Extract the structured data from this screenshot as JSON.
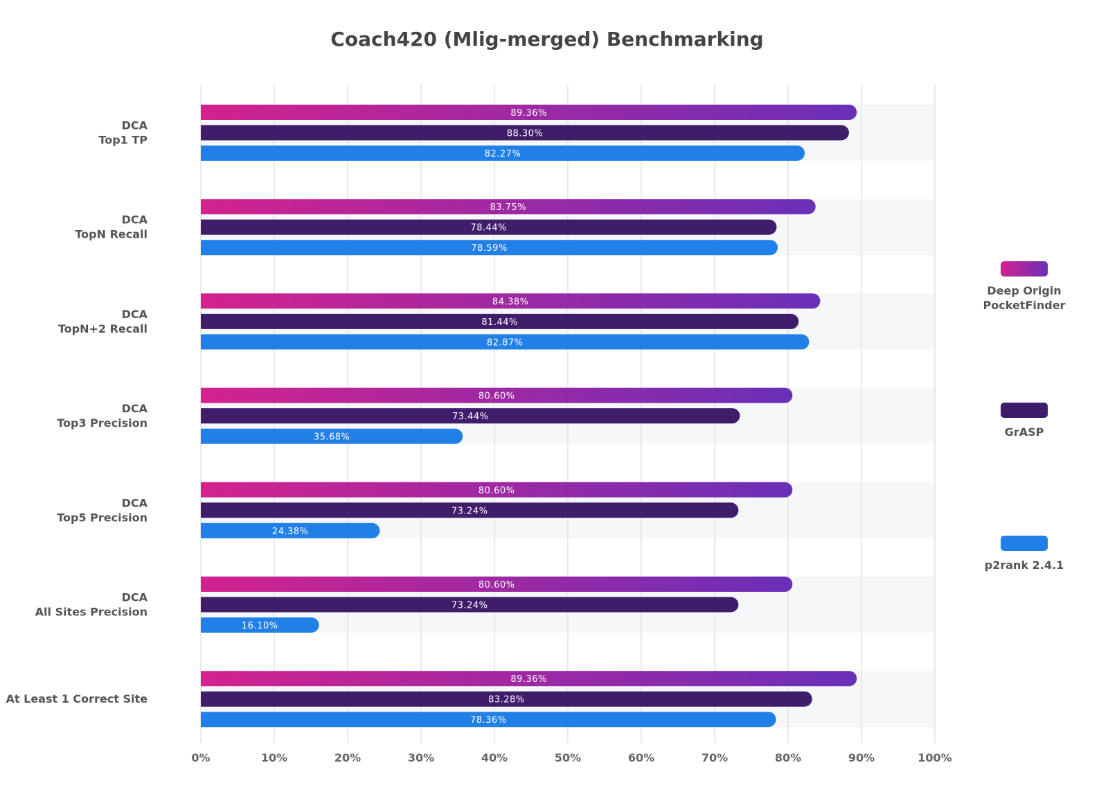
{
  "chart_data": {
    "type": "bar",
    "orientation": "horizontal",
    "title": "Coach420 (Mlig-merged) Benchmarking",
    "categories": [
      [
        "DCA",
        "Top1 TP"
      ],
      [
        "DCA",
        "TopN Recall"
      ],
      [
        "DCA",
        "TopN+2 Recall"
      ],
      [
        "DCA",
        "Top3 Precision"
      ],
      [
        "DCA",
        "Top5 Precision"
      ],
      [
        "DCA",
        "All Sites Precision"
      ],
      [
        "At Least 1 Correct Site"
      ]
    ],
    "series": [
      {
        "name": "Deep Origin PocketFinder",
        "legend_lines": [
          "Deep Origin",
          "PocketFinder"
        ],
        "color": [
          "#d3228e",
          "#6a2fb8"
        ],
        "values": [
          89.36,
          83.75,
          84.38,
          80.6,
          80.6,
          80.6,
          89.36
        ],
        "labels": [
          "89.36%",
          "83.75%",
          "84.38%",
          "80.60%",
          "80.60%",
          "80.60%",
          "89.36%"
        ]
      },
      {
        "name": "GrASP",
        "legend_lines": [
          "GrASP"
        ],
        "color": [
          "#3f1d6b"
        ],
        "values": [
          88.3,
          78.44,
          81.44,
          73.44,
          73.24,
          73.24,
          83.28
        ],
        "labels": [
          "88.30%",
          "78.44%",
          "81.44%",
          "73.44%",
          "73.24%",
          "73.24%",
          "83.28%"
        ]
      },
      {
        "name": "p2rank 2.4.1",
        "legend_lines": [
          "p2rank 2.4.1"
        ],
        "color": [
          "#2180e8"
        ],
        "values": [
          82.27,
          78.59,
          82.87,
          35.68,
          24.38,
          16.1,
          78.36
        ],
        "labels": [
          "82.27%",
          "78.59%",
          "82.87%",
          "35.68%",
          "24.38%",
          "16.10%",
          "78.36%"
        ]
      }
    ],
    "xlim": [
      0,
      100
    ],
    "xticks": [
      "0%",
      "10%",
      "20%",
      "30%",
      "40%",
      "50%",
      "60%",
      "70%",
      "80%",
      "90%",
      "100%"
    ],
    "xlabel": "",
    "ylabel": "",
    "grid": "vertical",
    "legend_position": "right"
  }
}
